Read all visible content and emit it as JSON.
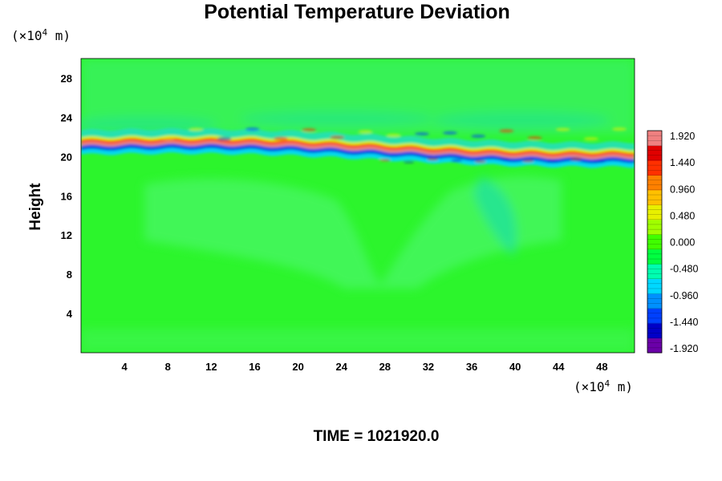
{
  "chart_data": {
    "type": "heatmap",
    "title": "Potential Temperature Deviation",
    "ylabel": "Height",
    "xlabel": "",
    "x_unit": {
      "prefix": "(×10",
      "exp": "4",
      "suffix": " m)"
    },
    "y_unit": {
      "prefix": "(×10",
      "exp": "4",
      "suffix": " m)"
    },
    "xlim": [
      0,
      51
    ],
    "ylim": [
      0,
      30
    ],
    "x_ticks": [
      "4",
      "8",
      "12",
      "16",
      "20",
      "24",
      "28",
      "32",
      "36",
      "40",
      "44",
      "48"
    ],
    "x_tick_values": [
      4,
      8,
      12,
      16,
      20,
      24,
      28,
      32,
      36,
      40,
      44,
      48
    ],
    "y_ticks": [
      "4",
      "8",
      "12",
      "16",
      "20",
      "24",
      "28"
    ],
    "y_tick_values": [
      4,
      8,
      12,
      16,
      20,
      24,
      28
    ],
    "colorbar": {
      "min": -1.92,
      "max": 1.92,
      "labels": [
        "1.920",
        "1.440",
        "0.960",
        "0.480",
        "0.000",
        "-0.480",
        "-0.960",
        "-1.440",
        "-1.920"
      ],
      "label_values": [
        1.92,
        1.44,
        0.96,
        0.48,
        0.0,
        -0.48,
        -0.96,
        -1.44,
        -1.92
      ],
      "colors": [
        "#6a00a8",
        "#0000c8",
        "#0040ff",
        "#0090ff",
        "#00d8ff",
        "#00ffb0",
        "#00ff40",
        "#40ff00",
        "#a0ff00",
        "#e8f000",
        "#ffc000",
        "#ff8000",
        "#ff3000",
        "#e00000",
        "#f08080"
      ]
    },
    "field_features": {
      "background_value": 0.0,
      "main_band_height": 20.5,
      "upper_wave_band_height": 22.3,
      "dip_center_x": 28,
      "dip_bottom_height": 6.5,
      "description_colors": {
        "background": "#2cf52c",
        "light_green": "#4cf76a",
        "cyan": "#25e0b8"
      }
    }
  },
  "footer": {
    "time_label": "TIME = 1021920.0"
  }
}
